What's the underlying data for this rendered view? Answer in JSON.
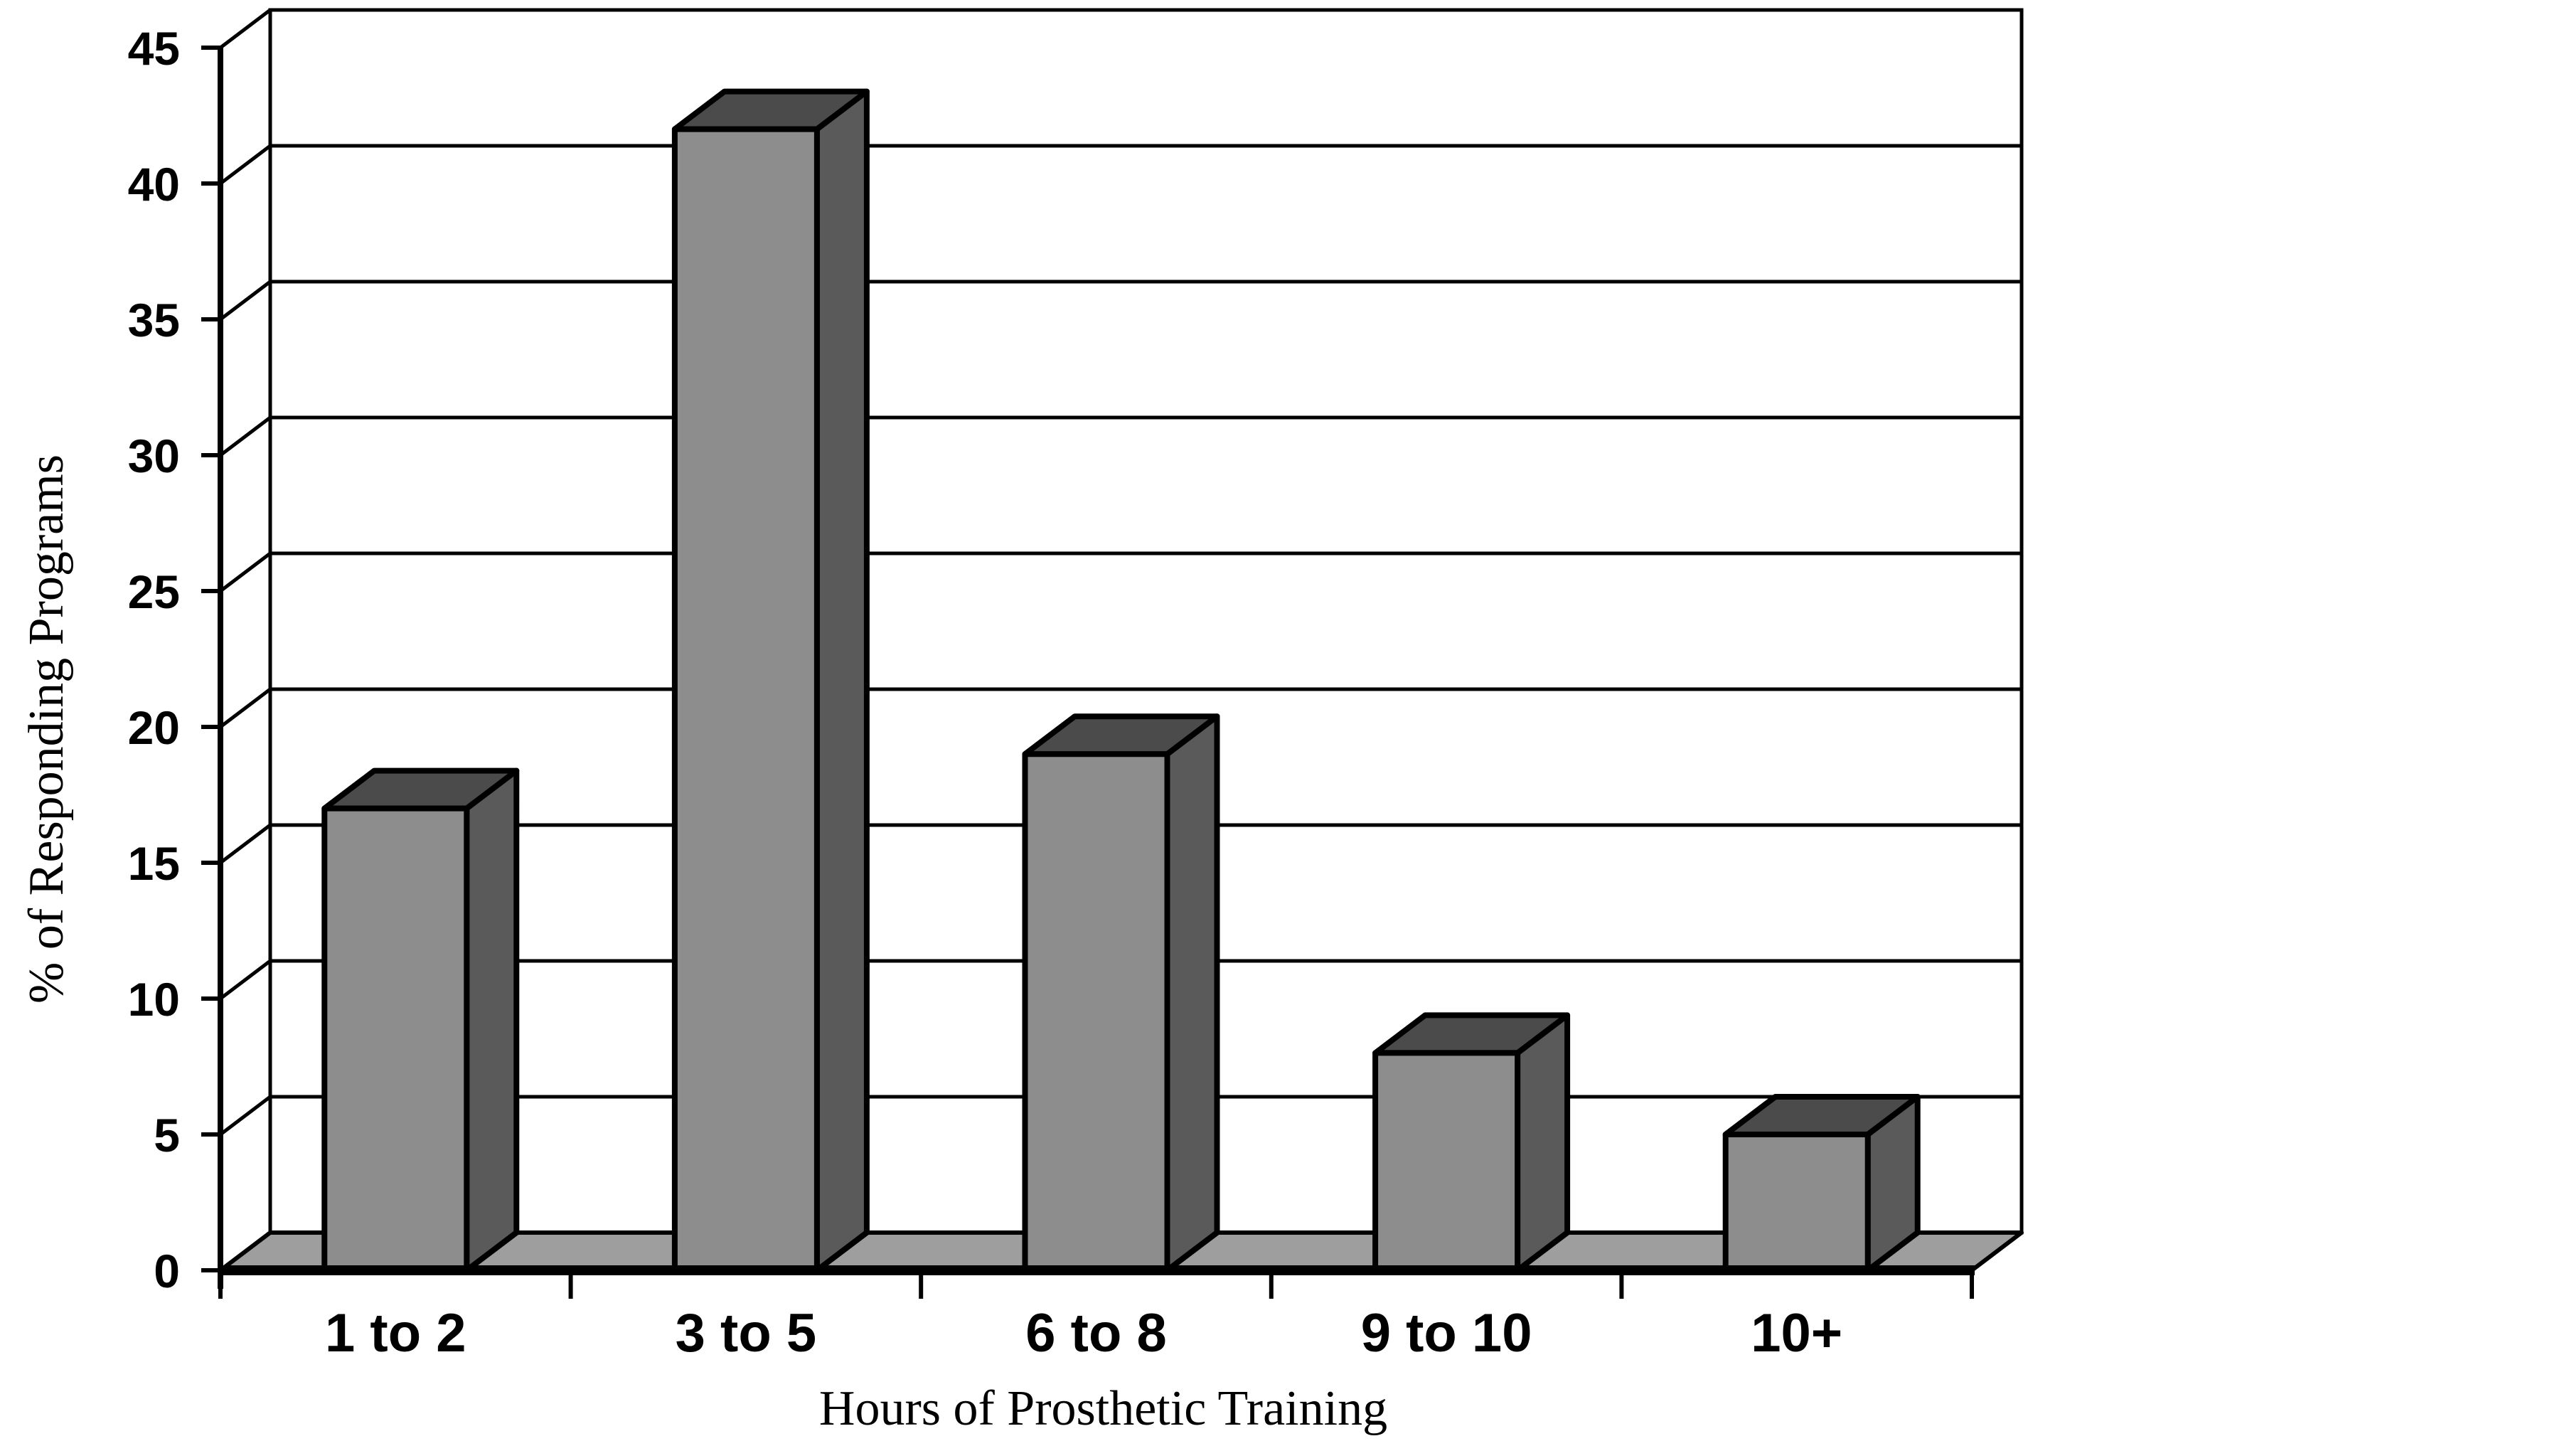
{
  "figure": {
    "background": "#ffffff"
  },
  "chart_data": {
    "type": "bar",
    "style": "3d-column",
    "title": "",
    "categories": [
      "1 to 2",
      "3 to 5",
      "6 to 8",
      "9 to 10",
      "10+"
    ],
    "values": [
      17,
      42,
      19,
      8,
      5
    ],
    "xlabel": "Hours of Prosthetic Training",
    "ylabel": "% of Responding Programs",
    "ylim": [
      0,
      45
    ],
    "ytick_step": 5,
    "ytick_labels": [
      "0",
      "5",
      "10",
      "15",
      "20",
      "25",
      "30",
      "35",
      "40",
      "45"
    ],
    "grid": true,
    "legend_position": "none",
    "colors": {
      "bar_front": "#8d8d8d",
      "bar_top": "#4b4b4b",
      "bar_side": "#5a5a5a",
      "floor": "#9e9e9e",
      "wall": "#ffffff",
      "line": "#000000",
      "background": "#ffffff",
      "text": "#000000"
    }
  }
}
